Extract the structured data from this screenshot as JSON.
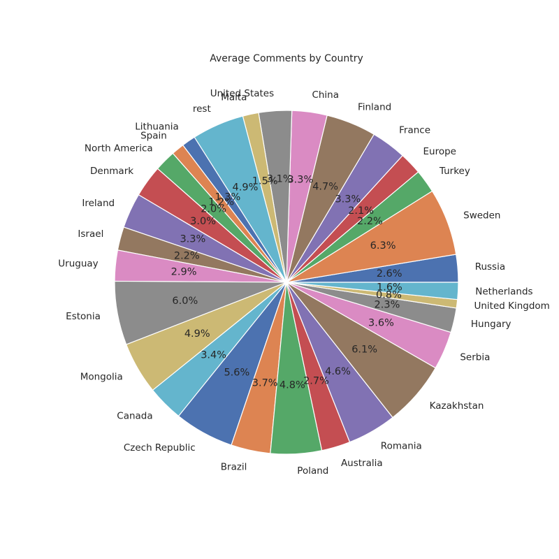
{
  "chart_data": {
    "type": "pie",
    "title": "Average Comments by Country",
    "start_angle_deg": 0,
    "direction": "counterclockwise",
    "slices": [
      {
        "label": "Russia",
        "value": 2.6,
        "pct_label": "2.6%",
        "color": "#4c72b0"
      },
      {
        "label": "Sweden",
        "value": 6.3,
        "pct_label": "6.3%",
        "color": "#dd8452"
      },
      {
        "label": "Turkey",
        "value": 2.2,
        "pct_label": "2.2%",
        "color": "#55a868"
      },
      {
        "label": "Europe",
        "value": 2.1,
        "pct_label": "2.1%",
        "color": "#c44e52"
      },
      {
        "label": "France",
        "value": 3.3,
        "pct_label": "3.3%",
        "color": "#8172b3"
      },
      {
        "label": "Finland",
        "value": 4.7,
        "pct_label": "4.7%",
        "color": "#937860"
      },
      {
        "label": "China",
        "value": 3.3,
        "pct_label": "3.3%",
        "color": "#da8bc3"
      },
      {
        "label": "United States",
        "value": 3.1,
        "pct_label": "3.1%",
        "color": "#8c8c8c"
      },
      {
        "label": "Malta",
        "value": 1.5,
        "pct_label": "1.5%",
        "color": "#ccb974"
      },
      {
        "label": "rest",
        "value": 4.9,
        "pct_label": "4.9%",
        "color": "#64b5cd"
      },
      {
        "label": "Lithuania",
        "value": 1.3,
        "pct_label": "1.3%",
        "color": "#4c72b0"
      },
      {
        "label": "Spain",
        "value": 1.2,
        "pct_label": "1.2%",
        "color": "#dd8452"
      },
      {
        "label": "North America",
        "value": 2.0,
        "pct_label": "2.0%",
        "color": "#55a868"
      },
      {
        "label": "Denmark",
        "value": 3.0,
        "pct_label": "3.0%",
        "color": "#c44e52"
      },
      {
        "label": "Ireland",
        "value": 3.3,
        "pct_label": "3.3%",
        "color": "#8172b3"
      },
      {
        "label": "Israel",
        "value": 2.2,
        "pct_label": "2.2%",
        "color": "#937860"
      },
      {
        "label": "Uruguay",
        "value": 2.9,
        "pct_label": "2.9%",
        "color": "#da8bc3"
      },
      {
        "label": "Estonia",
        "value": 6.0,
        "pct_label": "6.0%",
        "color": "#8c8c8c"
      },
      {
        "label": "Mongolia",
        "value": 4.9,
        "pct_label": "4.9%",
        "color": "#ccb974"
      },
      {
        "label": "Canada",
        "value": 3.4,
        "pct_label": "3.4%",
        "color": "#64b5cd"
      },
      {
        "label": "Czech Republic",
        "value": 5.6,
        "pct_label": "5.6%",
        "color": "#4c72b0"
      },
      {
        "label": "Brazil",
        "value": 3.7,
        "pct_label": "3.7%",
        "color": "#dd8452"
      },
      {
        "label": "Poland",
        "value": 4.8,
        "pct_label": "4.8%",
        "color": "#55a868"
      },
      {
        "label": "Australia",
        "value": 2.7,
        "pct_label": "2.7%",
        "color": "#c44e52"
      },
      {
        "label": "Romania",
        "value": 4.6,
        "pct_label": "4.6%",
        "color": "#8172b3"
      },
      {
        "label": "Kazakhstan",
        "value": 6.1,
        "pct_label": "6.1%",
        "color": "#937860"
      },
      {
        "label": "Serbia",
        "value": 3.6,
        "pct_label": "3.6%",
        "color": "#da8bc3"
      },
      {
        "label": "Hungary",
        "value": 2.3,
        "pct_label": "2.3%",
        "color": "#8c8c8c"
      },
      {
        "label": "United Kingdom",
        "value": 0.8,
        "pct_label": "0.8%",
        "color": "#ccb974"
      },
      {
        "label": "Netherlands",
        "value": 1.6,
        "pct_label": "1.6%",
        "color": "#64b5cd"
      }
    ]
  }
}
